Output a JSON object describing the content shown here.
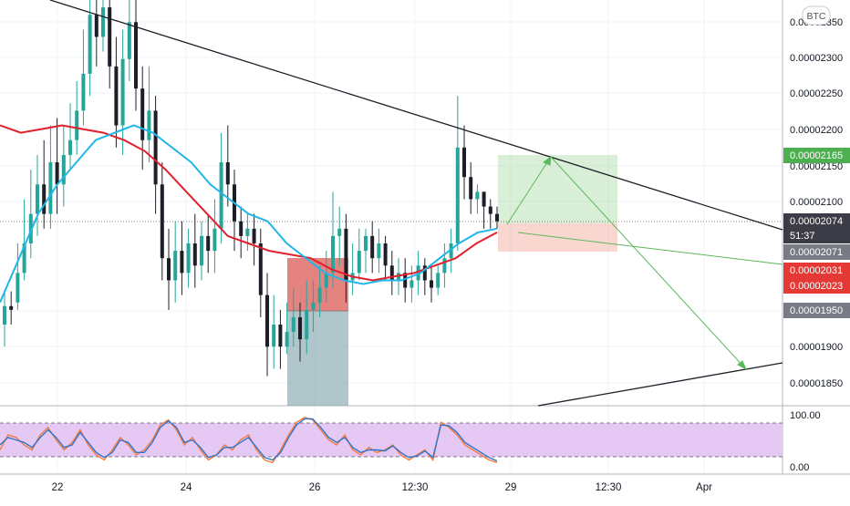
{
  "chart_data": {
    "type": "candlestick",
    "symbol_badge": "BTC",
    "price_axis_ticks": [
      "0.00002350",
      "0.00002300",
      "0.00002250",
      "0.00002200",
      "0.00002150",
      "0.00002100",
      "0.00001950",
      "0.00001900",
      "0.00001850"
    ],
    "price_tags": [
      {
        "label": "0.00002165",
        "price": 2.165e-05,
        "color": "#4caf50"
      },
      {
        "label": "0.00002074",
        "price": 2.074e-05,
        "color": "#3c3c46"
      },
      {
        "label": "51:37",
        "price": 2.059e-05,
        "color": "#3c3c46"
      },
      {
        "label": "0.00002071",
        "price": 2.041e-05,
        "color": "#787b86"
      },
      {
        "label": "0.00002031",
        "price": 2.031e-05,
        "color": "#e53935"
      },
      {
        "label": "0.00002023",
        "price": 2.013e-05,
        "color": "#e53935"
      },
      {
        "label": "0.00001950",
        "price": 1.95e-05,
        "color": "#787b86"
      }
    ],
    "price_range": [
      1.82e-05,
      2.37e-05
    ],
    "x_ticks": [
      "22",
      "24",
      "26",
      "12:30",
      "29",
      "12:30",
      "Apr"
    ],
    "current_price": 2.074e-05,
    "candles": [
      [
        1.93,
        1.955,
        1.975,
        1.9
      ],
      [
        1.955,
        1.95,
        1.975,
        1.93
      ],
      [
        1.96,
        2.0,
        2.04,
        1.95
      ],
      [
        2.0,
        2.04,
        2.1,
        1.99
      ],
      [
        2.04,
        2.08,
        2.14,
        2.02
      ],
      [
        2.08,
        2.12,
        2.16,
        2.05
      ],
      [
        2.12,
        2.08,
        2.18,
        2.06
      ],
      [
        2.08,
        2.15,
        2.2,
        2.06
      ],
      [
        2.15,
        2.12,
        2.21,
        2.08
      ],
      [
        2.12,
        2.16,
        2.2,
        2.09
      ],
      [
        2.16,
        2.18,
        2.23,
        2.14
      ],
      [
        2.18,
        2.22,
        2.26,
        2.16
      ],
      [
        2.22,
        2.27,
        2.33,
        2.2
      ],
      [
        2.27,
        2.35,
        2.38,
        2.24
      ],
      [
        2.35,
        2.32,
        2.38,
        2.28
      ],
      [
        2.32,
        2.36,
        2.38,
        2.3
      ],
      [
        2.36,
        2.28,
        2.38,
        2.25
      ],
      [
        2.28,
        2.2,
        2.32,
        2.17
      ],
      [
        2.2,
        2.29,
        2.33,
        2.16
      ],
      [
        2.29,
        2.34,
        2.37,
        2.26
      ],
      [
        2.34,
        2.25,
        2.38,
        2.22
      ],
      [
        2.25,
        2.18,
        2.28,
        2.14
      ],
      [
        2.18,
        2.22,
        2.28,
        2.15
      ],
      [
        2.22,
        2.12,
        2.24,
        2.08
      ],
      [
        2.12,
        2.02,
        2.15,
        1.99
      ],
      [
        2.02,
        1.99,
        2.06,
        1.95
      ],
      [
        1.99,
        2.03,
        2.07,
        1.96
      ],
      [
        2.03,
        2.0,
        2.07,
        1.97
      ],
      [
        2.0,
        2.04,
        2.06,
        1.98
      ],
      [
        2.04,
        2.01,
        2.08,
        1.98
      ],
      [
        2.01,
        2.05,
        2.07,
        1.99
      ],
      [
        2.05,
        2.03,
        2.08,
        2.0
      ],
      [
        2.03,
        2.06,
        2.1,
        2.0
      ],
      [
        2.06,
        2.15,
        2.19,
        2.04
      ],
      [
        2.15,
        2.12,
        2.2,
        2.09
      ],
      [
        2.12,
        2.07,
        2.14,
        2.03
      ],
      [
        2.07,
        2.05,
        2.09,
        2.02
      ],
      [
        2.05,
        2.06,
        2.08,
        2.03
      ],
      [
        2.06,
        2.04,
        2.08,
        2.01
      ],
      [
        2.04,
        1.97,
        2.06,
        1.94
      ],
      [
        1.97,
        1.9,
        2.0,
        1.86
      ],
      [
        1.9,
        1.93,
        1.97,
        1.87
      ],
      [
        1.93,
        1.9,
        1.95,
        1.87
      ],
      [
        1.9,
        1.92,
        1.96,
        1.89
      ],
      [
        1.92,
        1.94,
        1.98,
        1.9
      ],
      [
        1.94,
        1.91,
        1.96,
        1.88
      ],
      [
        1.91,
        1.95,
        1.99,
        1.89
      ],
      [
        1.95,
        1.96,
        1.99,
        1.92
      ],
      [
        1.96,
        1.98,
        2.01,
        1.94
      ],
      [
        1.98,
        2.0,
        2.03,
        1.96
      ],
      [
        2.0,
        2.05,
        2.11,
        1.98
      ],
      [
        2.05,
        2.06,
        2.09,
        2.01
      ],
      [
        2.06,
        1.99,
        2.08,
        1.96
      ],
      [
        1.99,
        2.0,
        2.04,
        1.97
      ],
      [
        2.0,
        2.03,
        2.06,
        1.99
      ],
      [
        2.03,
        2.05,
        2.06,
        2.0
      ],
      [
        2.05,
        2.02,
        2.07,
        2.0
      ],
      [
        2.02,
        2.04,
        2.06,
        2.0
      ],
      [
        2.04,
        2.01,
        2.05,
        1.99
      ],
      [
        2.01,
        1.99,
        2.03,
        1.97
      ],
      [
        1.99,
        2.0,
        2.02,
        1.97
      ],
      [
        2.0,
        1.98,
        2.02,
        1.96
      ],
      [
        1.98,
        1.99,
        2.01,
        1.96
      ],
      [
        1.99,
        2.01,
        2.03,
        1.97
      ],
      [
        2.01,
        1.99,
        2.02,
        1.97
      ],
      [
        1.99,
        1.98,
        2.01,
        1.96
      ],
      [
        1.98,
        2.0,
        2.01,
        1.97
      ],
      [
        2.0,
        2.02,
        2.04,
        1.98
      ],
      [
        2.02,
        2.04,
        2.06,
        2.0
      ],
      [
        2.04,
        2.17,
        2.24,
        2.03
      ],
      [
        2.17,
        2.13,
        2.2,
        2.1
      ],
      [
        2.13,
        2.1,
        2.15,
        2.08
      ],
      [
        2.1,
        2.11,
        2.12,
        2.08
      ],
      [
        2.11,
        2.09,
        2.11,
        2.06
      ],
      [
        2.09,
        2.08,
        2.1,
        2.06
      ],
      [
        2.08,
        2.07,
        2.09,
        2.06
      ]
    ],
    "red_ma_series": [
      2.2,
      2.19,
      2.195,
      2.2,
      2.195,
      2.19,
      2.18,
      2.165,
      2.14,
      2.11,
      2.08,
      2.05,
      2.04,
      2.03,
      2.025,
      2.02,
      2.005,
      1.995,
      1.99,
      1.995,
      2.0,
      2.01,
      2.02,
      2.04,
      2.055
    ],
    "blue_ma_series": [
      1.96,
      2.02,
      2.08,
      2.12,
      2.15,
      2.18,
      2.19,
      2.2,
      2.19,
      2.17,
      2.15,
      2.12,
      2.1,
      2.08,
      2.07,
      2.04,
      2.02,
      2.0,
      1.99,
      1.985,
      1.99,
      1.99,
      2.0,
      2.02,
      2.04,
      2.055,
      2.06
    ],
    "oscillator": {
      "axis_ticks": [
        "100.00",
        "0.00"
      ],
      "upper_band": 80,
      "lower_band": 20,
      "series_orange": [
        30,
        60,
        55,
        40,
        30,
        60,
        75,
        50,
        30,
        45,
        70,
        40,
        20,
        10,
        30,
        55,
        40,
        20,
        30,
        50,
        80,
        90,
        70,
        40,
        55,
        30,
        10,
        20,
        40,
        30,
        50,
        60,
        30,
        10,
        5,
        30,
        60,
        85,
        95,
        90,
        70,
        50,
        40,
        60,
        30,
        20,
        35,
        25,
        30,
        40,
        20,
        10,
        20,
        30,
        10,
        85,
        75,
        60,
        40,
        30,
        20,
        10,
        5
      ],
      "series_blue": [
        40,
        55,
        50,
        45,
        35,
        55,
        70,
        55,
        35,
        40,
        65,
        45,
        25,
        15,
        25,
        50,
        45,
        25,
        25,
        45,
        75,
        88,
        75,
        45,
        50,
        35,
        15,
        20,
        35,
        35,
        45,
        55,
        35,
        15,
        10,
        25,
        55,
        80,
        92,
        92,
        75,
        55,
        45,
        55,
        35,
        25,
        30,
        30,
        28,
        38,
        25,
        15,
        18,
        28,
        15,
        80,
        78,
        65,
        45,
        35,
        25,
        15,
        8
      ]
    },
    "trendlines": [
      "descending resistance",
      "ascending support"
    ],
    "position_tools": [
      "long position (green target / red stop)",
      "short position (red / grey-blue)"
    ],
    "projection_arrows": 3
  }
}
